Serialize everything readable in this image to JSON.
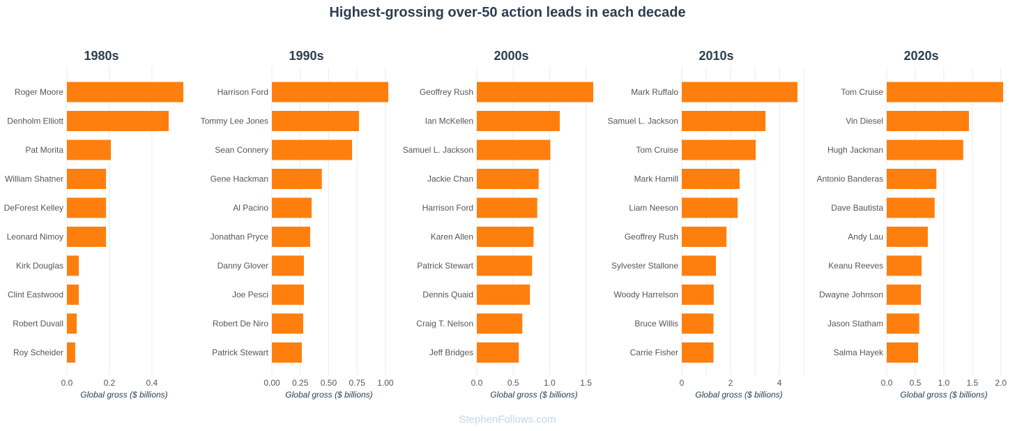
{
  "chart_data": {
    "title": "Highest-grossing over-50 action leads in each decade",
    "watermark": "StephenFollows.com",
    "bar_color": "#ff7f0e",
    "panels": [
      {
        "type": "bar",
        "orientation": "horizontal",
        "title": "1980s",
        "xlabel": "Global gross ($ billions)",
        "categories": [
          "Roger Moore",
          "Denholm Elliott",
          "Pat Morita",
          "William Shatner",
          "DeForest Kelley",
          "Leonard Nimoy",
          "Kirk Douglas",
          "Clint Eastwood",
          "Robert Duvall",
          "Roy Scheider"
        ],
        "values": [
          0.548,
          0.479,
          0.207,
          0.184,
          0.184,
          0.184,
          0.056,
          0.056,
          0.046,
          0.039
        ],
        "xlim": [
          0,
          0.548
        ],
        "ticks": [
          0,
          0.2,
          0.4
        ],
        "tick_labels": [
          "0.0",
          "0.2",
          "0.4"
        ],
        "grid": [
          0,
          0.2,
          0.4
        ]
      },
      {
        "type": "bar",
        "orientation": "horizontal",
        "title": "1990s",
        "xlabel": "Global gross ($ billions)",
        "categories": [
          "Harrison Ford",
          "Tommy Lee Jones",
          "Sean Connery",
          "Gene Hackman",
          "Al Pacino",
          "Jonathan Pryce",
          "Danny Glover",
          "Joe Pesci",
          "Robert De Niro",
          "Patrick Stewart"
        ],
        "values": [
          1.025,
          0.767,
          0.706,
          0.44,
          0.35,
          0.337,
          0.282,
          0.282,
          0.276,
          0.264
        ],
        "xlim": [
          0,
          1.025
        ],
        "ticks": [
          0,
          0.25,
          0.5,
          0.75,
          1.0
        ],
        "tick_labels": [
          "0.00",
          "0.25",
          "0.50",
          "0.75",
          "1.00"
        ],
        "grid": [
          0,
          0.25,
          0.5,
          0.75,
          1.0
        ]
      },
      {
        "type": "bar",
        "orientation": "horizontal",
        "title": "2000s",
        "xlabel": "Global gross ($ billions)",
        "categories": [
          "Geoffrey Rush",
          "Ian McKellen",
          "Samuel L. Jackson",
          "Jackie Chan",
          "Harrison Ford",
          "Karen Allen",
          "Patrick Stewart",
          "Dennis Quaid",
          "Craig T. Nelson",
          "Jeff Bridges"
        ],
        "values": [
          1.6,
          1.14,
          1.01,
          0.85,
          0.83,
          0.78,
          0.76,
          0.73,
          0.625,
          0.577
        ],
        "xlim": [
          0,
          1.6
        ],
        "ticks": [
          0,
          0.5,
          1.0,
          1.5
        ],
        "tick_labels": [
          "0.0",
          "0.5",
          "1.0",
          "1.5"
        ],
        "grid": [
          0,
          0.5,
          1.0,
          1.5
        ]
      },
      {
        "type": "bar",
        "orientation": "horizontal",
        "title": "2010s",
        "xlabel": "Global gross ($ billions)",
        "categories": [
          "Mark Ruffalo",
          "Samuel L. Jackson",
          "Tom Cruise",
          "Mark Hamill",
          "Liam Neeson",
          "Geoffrey Rush",
          "Sylvester Stallone",
          "Woody Harrelson",
          "Bruce Willis",
          "Carrie Fisher"
        ],
        "values": [
          4.74,
          3.43,
          3.03,
          2.37,
          2.29,
          1.83,
          1.4,
          1.31,
          1.3,
          1.3
        ],
        "xlim": [
          0,
          4.77
        ],
        "ticks": [
          0,
          2,
          4
        ],
        "tick_labels": [
          "0",
          "2",
          "4"
        ],
        "grid": [
          0,
          1,
          2,
          3,
          4,
          5
        ]
      },
      {
        "type": "bar",
        "orientation": "horizontal",
        "title": "2020s",
        "xlabel": "Global gross ($ billions)",
        "categories": [
          "Tom Cruise",
          "Vin Diesel",
          "Hugh Jackman",
          "Antonio Banderas",
          "Dave Bautista",
          "Andy Lau",
          "Keanu Reeves",
          "Dwayne Johnson",
          "Jason Statham",
          "Salma Hayek"
        ],
        "values": [
          2.04,
          1.44,
          1.34,
          0.87,
          0.84,
          0.72,
          0.61,
          0.6,
          0.57,
          0.55
        ],
        "xlim": [
          0,
          2.04
        ],
        "ticks": [
          0,
          0.5,
          1.0,
          1.5,
          2.0
        ],
        "tick_labels": [
          "0.0",
          "0.5",
          "1.0",
          "1.5",
          "2.0"
        ],
        "grid": [
          0,
          0.5,
          1.0,
          1.5,
          2.0
        ]
      }
    ]
  }
}
